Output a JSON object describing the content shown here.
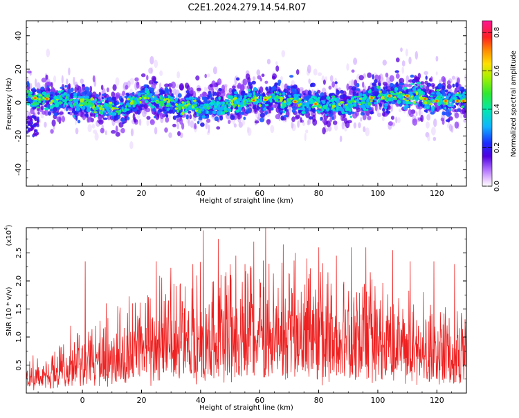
{
  "title": "C2E1.2024.279.14.54.R07",
  "chart_data": [
    {
      "type": "heatmap",
      "xlabel": "Height of straight line (km)",
      "ylabel": "Frequency (Hz)",
      "xlim": [
        -19,
        130
      ],
      "ylim": [
        -50,
        49
      ],
      "xticks": [
        0,
        20,
        40,
        60,
        80,
        100,
        120
      ],
      "yticks": [
        -40,
        -20,
        0,
        20,
        40
      ],
      "band_center": [
        [
          -18,
          3
        ],
        [
          -10,
          2
        ],
        [
          0,
          0
        ],
        [
          10,
          -4
        ],
        [
          15,
          -3
        ],
        [
          20,
          4
        ],
        [
          25,
          2
        ],
        [
          30,
          -1
        ],
        [
          40,
          -3
        ],
        [
          50,
          -1
        ],
        [
          55,
          2
        ],
        [
          60,
          1
        ],
        [
          65,
          3
        ],
        [
          70,
          1
        ],
        [
          80,
          -1
        ],
        [
          90,
          -1
        ],
        [
          95,
          1
        ],
        [
          100,
          4
        ],
        [
          110,
          4
        ],
        [
          120,
          1
        ],
        [
          130,
          1
        ]
      ],
      "colorbar": {
        "label": "Normalized spectral amplitude",
        "min": 0,
        "max": 0.86,
        "ticks": [
          "0.0",
          "0.2",
          "0.4",
          "0.6",
          "0.8"
        ]
      }
    },
    {
      "type": "line",
      "xlabel": "Height of straight line (km)",
      "ylabel": "SNR (10 * v/v)",
      "y_multiplier_label": "(x10",
      "y_multiplier_exp": "4",
      "y_multiplier_close": ")",
      "xlim": [
        -19,
        130
      ],
      "ylim": [
        0,
        2.95
      ],
      "xticks": [
        0,
        20,
        40,
        60,
        80,
        100,
        120
      ],
      "yticks": [
        "0.5",
        "1.0",
        "1.5",
        "2.0",
        "2.5"
      ],
      "series_color": "#ee2020",
      "envelope": [
        [
          -19,
          0.45
        ],
        [
          -10,
          0.6
        ],
        [
          0,
          0.8
        ],
        [
          10,
          1.05
        ],
        [
          20,
          1.35
        ],
        [
          30,
          1.6
        ],
        [
          40,
          1.7
        ],
        [
          50,
          1.7
        ],
        [
          60,
          1.75
        ],
        [
          70,
          1.7
        ],
        [
          80,
          1.65
        ],
        [
          90,
          1.6
        ],
        [
          100,
          1.5
        ],
        [
          110,
          1.35
        ],
        [
          120,
          1.25
        ],
        [
          130,
          1.15
        ]
      ],
      "peaks": [
        [
          -4,
          1.2
        ],
        [
          1,
          2.35
        ],
        [
          8,
          1.6
        ],
        [
          12,
          1.55
        ],
        [
          17,
          1.6
        ],
        [
          25,
          2.35
        ],
        [
          31,
          1.95
        ],
        [
          41,
          2.9
        ],
        [
          46,
          2.75
        ],
        [
          52,
          2.45
        ],
        [
          55,
          2.3
        ],
        [
          58,
          2.7
        ],
        [
          62,
          2.95
        ],
        [
          68,
          2.65
        ],
        [
          72,
          2.5
        ],
        [
          76,
          2.4
        ],
        [
          80,
          2.6
        ],
        [
          86,
          2.45
        ],
        [
          91,
          2.6
        ],
        [
          96,
          2.6
        ],
        [
          105,
          2.55
        ],
        [
          111,
          2.35
        ],
        [
          119,
          2.35
        ],
        [
          126,
          2.3
        ]
      ]
    }
  ]
}
